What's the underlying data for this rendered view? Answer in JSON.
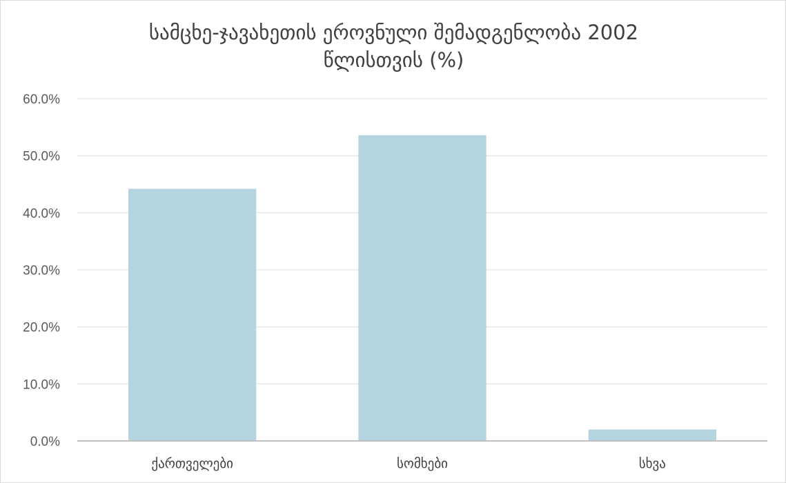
{
  "chart_data": {
    "type": "bar",
    "title_line1": "სამცხე-ჯავახეთის ეროვნული შემადგენლობა 2002",
    "title_line2": "წლისთვის (%)",
    "categories": [
      "ქართველები",
      "სომხები",
      "სხვა"
    ],
    "values": [
      44.2,
      53.6,
      2.0
    ],
    "ylim": [
      0,
      60
    ],
    "y_ticks": [
      "0.0%",
      "10.0%",
      "20.0%",
      "30.0%",
      "40.0%",
      "50.0%",
      "60.0%"
    ],
    "xlabel": "",
    "ylabel": "",
    "grid": true,
    "legend": "none",
    "colors": {
      "bar": "#b4d5e0",
      "grid": "#e6e6e6",
      "axis": "#bfbfbf"
    }
  }
}
